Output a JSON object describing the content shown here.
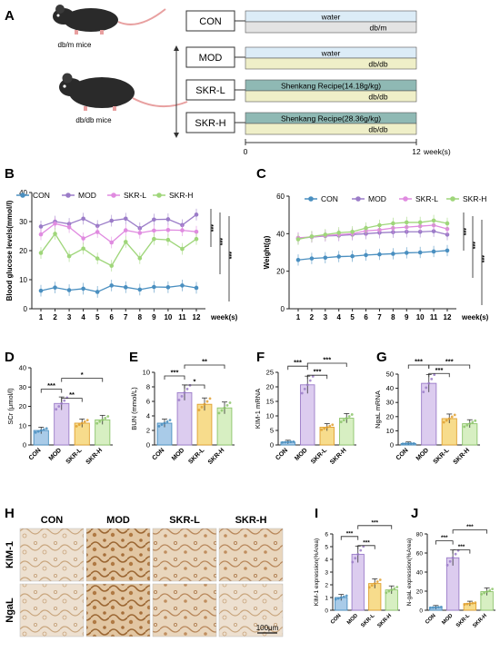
{
  "panel_letters": [
    "A",
    "B",
    "C",
    "D",
    "E",
    "F",
    "G",
    "H",
    "I",
    "J"
  ],
  "design": {
    "mouse_labels": [
      "db/m mice",
      "db/db mice"
    ],
    "groups": [
      {
        "name": "CON",
        "top": "water",
        "bottom": "db/m",
        "top_color": "#dcecf7",
        "bottom_color": "#e3e3e3"
      },
      {
        "name": "MOD",
        "top": "water",
        "bottom": "db/db",
        "top_color": "#dcecf7",
        "bottom_color": "#efefc8"
      },
      {
        "name": "SKR-L",
        "top": "Shenkang Recipe(14.18g/kg)",
        "bottom": "db/db",
        "top_color": "#8fb9b4",
        "bottom_color": "#efefc8"
      },
      {
        "name": "SKR-H",
        "top": "Shenkang Recipe(28.36g/kg)",
        "bottom": "db/db",
        "top_color": "#8fb9b4",
        "bottom_color": "#efefc8"
      }
    ],
    "timeline": {
      "start": "0",
      "end": "12",
      "unit": "week(s)"
    }
  },
  "series_colors": {
    "CON": "#4a8fc0",
    "MOD": "#9b7cc8",
    "SKR-L": "#e08be0",
    "SKR-H": "#9fd67a"
  },
  "legend": [
    "CON",
    "MOD",
    "SKR-L",
    "SKR-H"
  ],
  "chart_data": [
    {
      "id": "B",
      "type": "line",
      "ylabel": "Blood glucose levels(mmol/l)",
      "xlabel": "week(s)",
      "ylim": [
        0,
        40
      ],
      "yticks": [
        0,
        10,
        20,
        30,
        40
      ],
      "x": [
        1,
        2,
        3,
        4,
        5,
        6,
        7,
        8,
        9,
        10,
        11,
        12
      ],
      "series": [
        {
          "name": "CON",
          "values": [
            6.2,
            7.3,
            6.4,
            6.9,
            5.8,
            8.0,
            7.4,
            6.6,
            7.5,
            7.4,
            8.0,
            7.2
          ]
        },
        {
          "name": "MOD",
          "values": [
            28.3,
            30.0,
            29.2,
            31.0,
            28.5,
            30.3,
            31.0,
            27.7,
            30.7,
            30.8,
            28.8,
            32.4
          ]
        },
        {
          "name": "SKR-L",
          "values": [
            25.6,
            29.3,
            28.1,
            24.2,
            26.4,
            22.8,
            27.0,
            26.1,
            26.9,
            27.1,
            27.0,
            26.5
          ]
        },
        {
          "name": "SKR-H",
          "values": [
            19.2,
            25.8,
            18.1,
            20.7,
            17.3,
            14.8,
            23.0,
            17.4,
            24.0,
            23.7,
            20.6,
            24.0
          ]
        }
      ],
      "significance": [
        "***",
        "***",
        "***"
      ]
    },
    {
      "id": "C",
      "type": "line",
      "ylabel": "Weight(g)",
      "xlabel": "week(s)",
      "ylim": [
        0,
        60
      ],
      "yticks": [
        0,
        20,
        40,
        60
      ],
      "x": [
        1,
        2,
        3,
        4,
        5,
        6,
        7,
        8,
        9,
        10,
        11,
        12
      ],
      "series": [
        {
          "name": "CON",
          "values": [
            26.0,
            26.8,
            27.2,
            27.8,
            28.0,
            28.6,
            29.0,
            29.3,
            29.8,
            30.0,
            30.5,
            31.0
          ]
        },
        {
          "name": "MOD",
          "values": [
            37.5,
            38.2,
            38.8,
            39.0,
            39.5,
            40.0,
            40.5,
            40.8,
            41.0,
            41.0,
            41.3,
            39.5
          ]
        },
        {
          "name": "SKR-L",
          "values": [
            37.8,
            38.3,
            39.0,
            39.5,
            40.0,
            41.5,
            42.0,
            43.0,
            43.5,
            44.0,
            44.5,
            42.5
          ]
        },
        {
          "name": "SKR-H",
          "values": [
            37.0,
            38.5,
            39.5,
            40.5,
            41.0,
            43.0,
            44.5,
            45.5,
            46.0,
            46.0,
            47.0,
            45.5
          ]
        }
      ],
      "significance": [
        "***",
        "***",
        "***"
      ]
    },
    {
      "id": "D",
      "type": "bar",
      "ylabel": "SCr (μmol/l)",
      "categories": [
        "CON",
        "MOD",
        "SKR-L",
        "SKR-H"
      ],
      "values": [
        7.5,
        21.5,
        11.3,
        13.0
      ],
      "ylim": [
        0,
        40
      ],
      "yticks": [
        0,
        10,
        20,
        30,
        40
      ],
      "significance": [
        "***",
        "**",
        "*"
      ]
    },
    {
      "id": "E",
      "type": "bar",
      "ylabel": "BUN (mmol/L)",
      "categories": [
        "CON",
        "MOD",
        "SKR-L",
        "SKR-H"
      ],
      "values": [
        3.0,
        7.2,
        5.6,
        5.1
      ],
      "ylim": [
        0,
        10
      ],
      "yticks": [
        0,
        2,
        4,
        6,
        8,
        10
      ],
      "significance": [
        "***",
        "*",
        "**"
      ]
    },
    {
      "id": "F",
      "type": "bar",
      "ylabel": "KIM-1 mRNA",
      "categories": [
        "CON",
        "MOD",
        "SKR-L",
        "SKR-H"
      ],
      "values": [
        1.0,
        20.7,
        6.1,
        9.2
      ],
      "ylim": [
        0,
        25
      ],
      "yticks": [
        0,
        5,
        10,
        15,
        20,
        25
      ],
      "significance": [
        "***",
        "***",
        "***"
      ]
    },
    {
      "id": "G",
      "type": "bar",
      "ylabel": "NgaL mRNA",
      "categories": [
        "CON",
        "MOD",
        "SKR-L",
        "SKR-H"
      ],
      "values": [
        1.0,
        43.5,
        18.6,
        15.0
      ],
      "ylim": [
        0,
        50
      ],
      "yticks": [
        0,
        10,
        20,
        30,
        40,
        50
      ],
      "significance": [
        "***",
        "***",
        "***"
      ]
    },
    {
      "id": "I",
      "type": "bar",
      "ylabel": "KIM-1 expression(%Area)",
      "categories": [
        "CON",
        "MOD",
        "SKR-L",
        "SKR-H"
      ],
      "values": [
        1.0,
        4.4,
        2.1,
        1.6
      ],
      "ylim": [
        0,
        6
      ],
      "yticks": [
        0,
        1,
        2,
        3,
        4,
        5,
        6
      ],
      "significance": [
        "***",
        "***",
        "***"
      ]
    },
    {
      "id": "J",
      "type": "bar",
      "ylabel": "N-gaL expression(%Area)",
      "categories": [
        "CON",
        "MOD",
        "SKR-L",
        "SKR-H"
      ],
      "values": [
        3.0,
        55.0,
        7.0,
        19.5
      ],
      "ylim": [
        0,
        80
      ],
      "yticks": [
        0,
        20,
        40,
        60,
        80
      ],
      "significance": [
        "***",
        "***",
        "***"
      ]
    }
  ],
  "histology": {
    "columns": [
      "CON",
      "MOD",
      "SKR-L",
      "SKR-H"
    ],
    "rows": [
      "KIM-1",
      "NgaL"
    ],
    "scale_bar": "100μm"
  }
}
